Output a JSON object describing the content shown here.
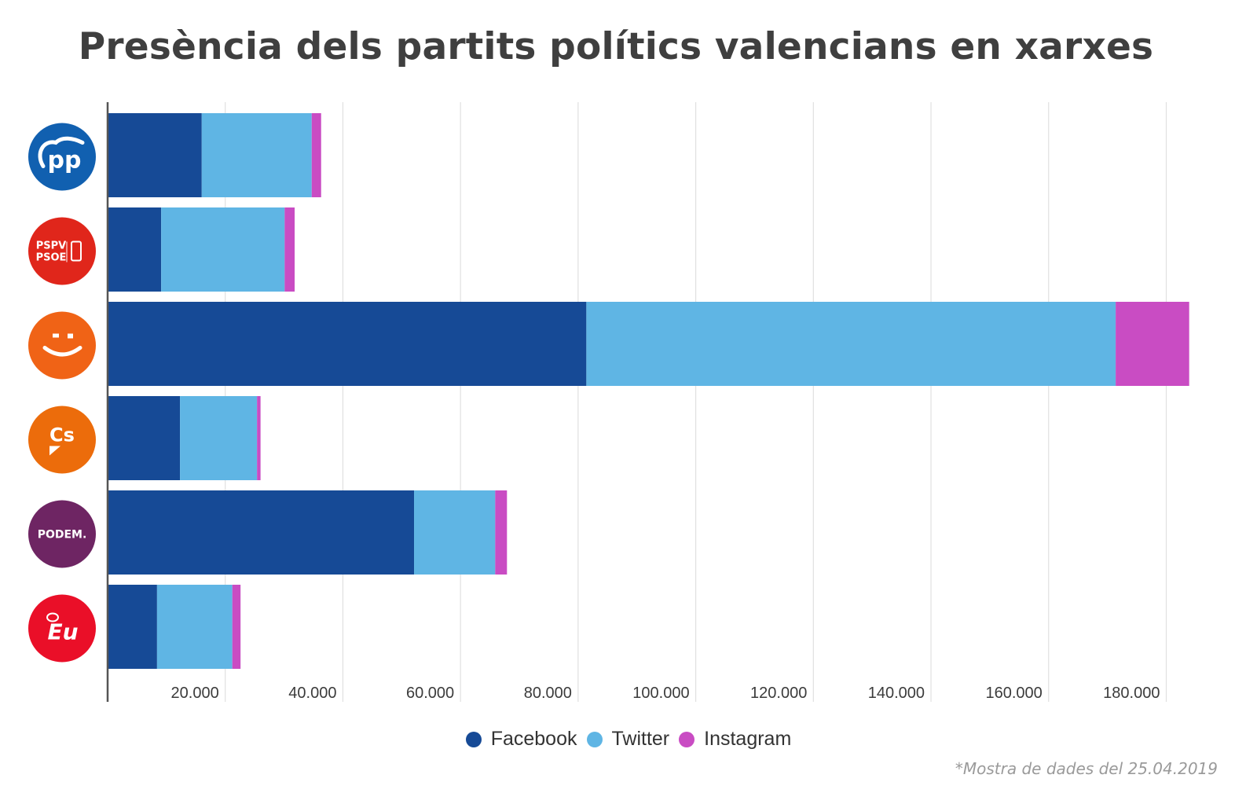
{
  "title": "Presència dels partits polítics valencians en xarxes",
  "footnote": "*Mostra de dades del 25.04.2019",
  "colors": {
    "facebook": "#164a96",
    "twitter": "#5fb5e4",
    "instagram": "#c94cc3",
    "grid": "#e0e0e0",
    "axis": "#555555"
  },
  "legend": [
    {
      "label": "Facebook",
      "color": "#164a96"
    },
    {
      "label": "Twitter",
      "color": "#5fb5e4"
    },
    {
      "label": "Instagram",
      "color": "#c94cc3"
    }
  ],
  "parties": [
    {
      "name": "PP",
      "logo": "pp-logo",
      "logo_text": "PP",
      "logo_color": "#1160b0"
    },
    {
      "name": "PSPV-PSOE",
      "logo": "pspv-psoe-logo",
      "logo_text": "PSPV PSOE",
      "logo_color": "#e0261b"
    },
    {
      "name": "Compromís",
      "logo": "compromis-logo",
      "logo_text": "",
      "logo_color": "#f06316"
    },
    {
      "name": "Ciudadanos",
      "logo": "cs-logo",
      "logo_text": "Cs",
      "logo_color": "#ec6c0b"
    },
    {
      "name": "Podem",
      "logo": "podem-logo",
      "logo_text": "PODEM.",
      "logo_color": "#6e2563"
    },
    {
      "name": "Esquerra Unida",
      "logo": "eu-logo",
      "logo_text": "EU",
      "logo_color": "#ea0f28"
    }
  ],
  "chart_data": {
    "type": "bar",
    "orientation": "horizontal",
    "stacked": true,
    "title": "Presència dels partits polítics valencians en xarxes",
    "xlabel": "",
    "ylabel": "",
    "categories": [
      "PP",
      "PSPV-PSOE",
      "Compromís",
      "Ciudadanos",
      "Podem",
      "Esquerra Unida"
    ],
    "series": [
      {
        "name": "Facebook",
        "color": "#164a96",
        "values": [
          16000,
          9100,
          81400,
          12300,
          52100,
          8400
        ]
      },
      {
        "name": "Twitter",
        "color": "#5fb5e4",
        "values": [
          18700,
          21000,
          90000,
          13100,
          13800,
          12800
        ]
      },
      {
        "name": "Instagram",
        "color": "#c94cc3",
        "values": [
          1600,
          1700,
          12500,
          600,
          2000,
          1400
        ]
      }
    ],
    "xlim": [
      0,
      190000
    ],
    "xticks": [
      20000,
      40000,
      60000,
      80000,
      100000,
      120000,
      140000,
      160000,
      180000
    ],
    "xtick_labels": [
      "20.000",
      "40.000",
      "60.000",
      "80.000",
      "100.000",
      "120.000",
      "140.000",
      "160.000",
      "180.000"
    ],
    "grid": true,
    "legend_position": "bottom-center",
    "footnote": "*Mostra de dades del 25.04.2019"
  }
}
